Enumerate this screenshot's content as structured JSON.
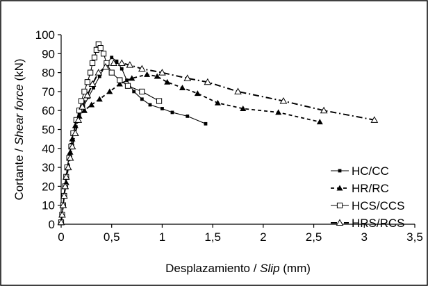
{
  "chart_data": {
    "type": "line",
    "xlabel_parts": [
      {
        "text": "Desplazamiento / ",
        "italic": false
      },
      {
        "text": "Slip",
        "italic": true
      },
      {
        "text": " (mm)",
        "italic": false
      }
    ],
    "ylabel_parts": [
      {
        "text": "Cortante / ",
        "italic": false
      },
      {
        "text": "Shear force",
        "italic": true
      },
      {
        "text": " (kN)",
        "italic": false
      }
    ],
    "xlim": [
      0,
      3.5
    ],
    "ylim": [
      0,
      100
    ],
    "x_ticks": [
      {
        "value": 0,
        "label": "0"
      },
      {
        "value": 0.5,
        "label": "0,5"
      },
      {
        "value": 1,
        "label": "1"
      },
      {
        "value": 1.5,
        "label": "1,5"
      },
      {
        "value": 2,
        "label": "2"
      },
      {
        "value": 2.5,
        "label": "2,5"
      },
      {
        "value": 3,
        "label": "3"
      },
      {
        "value": 3.5,
        "label": "3,5"
      }
    ],
    "y_ticks": [
      {
        "value": 0,
        "label": "0"
      },
      {
        "value": 10,
        "label": "10"
      },
      {
        "value": 20,
        "label": "20"
      },
      {
        "value": 30,
        "label": "30"
      },
      {
        "value": 40,
        "label": "40"
      },
      {
        "value": 50,
        "label": "50"
      },
      {
        "value": 60,
        "label": "60"
      },
      {
        "value": 70,
        "label": "70"
      },
      {
        "value": 80,
        "label": "80"
      },
      {
        "value": 90,
        "label": "90"
      },
      {
        "value": 100,
        "label": "100"
      }
    ],
    "grid": false,
    "legend_position": "right",
    "series": [
      {
        "name": "HC/CC",
        "marker": "filled-square",
        "line": "solid",
        "x": [
          0,
          0.01,
          0.02,
          0.03,
          0.04,
          0.05,
          0.06,
          0.08,
          0.1,
          0.12,
          0.15,
          0.18,
          0.22,
          0.27,
          0.32,
          0.38,
          0.44,
          0.5,
          0.55,
          0.6,
          0.65,
          0.72,
          0.8,
          0.88,
          1.0,
          1.1,
          1.25,
          1.43
        ],
        "y": [
          1,
          5,
          10,
          15,
          20,
          25,
          30,
          36,
          42,
          48,
          54,
          58,
          62,
          67,
          72,
          78,
          84,
          88,
          86,
          82,
          76,
          70,
          66,
          63,
          61,
          59,
          57,
          53
        ]
      },
      {
        "name": "HR/RC",
        "marker": "filled-triangle",
        "line": "dashed",
        "x": [
          0,
          0.01,
          0.02,
          0.03,
          0.05,
          0.07,
          0.09,
          0.11,
          0.14,
          0.18,
          0.23,
          0.3,
          0.38,
          0.48,
          0.58,
          0.7,
          0.85,
          0.95,
          1.05,
          1.2,
          1.35,
          1.55,
          1.8,
          2.15,
          2.56
        ],
        "y": [
          1,
          5,
          10,
          15,
          22,
          30,
          38,
          45,
          52,
          57,
          60,
          63,
          66,
          70,
          74,
          77,
          79,
          78,
          75,
          72,
          69,
          64,
          61,
          59,
          54
        ]
      },
      {
        "name": "HCS/CCS",
        "marker": "open-square",
        "line": "solid",
        "x": [
          0,
          0.01,
          0.02,
          0.03,
          0.04,
          0.05,
          0.06,
          0.08,
          0.1,
          0.12,
          0.15,
          0.18,
          0.2,
          0.23,
          0.26,
          0.29,
          0.31,
          0.33,
          0.35,
          0.37,
          0.39,
          0.42,
          0.45,
          0.5,
          0.58,
          0.66,
          0.8,
          0.97
        ],
        "y": [
          1,
          5,
          10,
          15,
          20,
          25,
          30,
          35,
          41,
          48,
          55,
          60,
          65,
          70,
          75,
          80,
          85,
          88,
          92,
          95,
          93,
          90,
          85,
          80,
          76,
          73,
          70,
          65
        ]
      },
      {
        "name": "HRS/RCS",
        "marker": "open-triangle",
        "line": "dashdot",
        "x": [
          0,
          0.01,
          0.02,
          0.03,
          0.04,
          0.05,
          0.07,
          0.09,
          0.11,
          0.14,
          0.17,
          0.21,
          0.26,
          0.31,
          0.37,
          0.44,
          0.52,
          0.6,
          0.68,
          0.8,
          1.0,
          1.25,
          1.45,
          1.75,
          2.2,
          2.6,
          3.1
        ],
        "y": [
          1,
          5,
          10,
          15,
          20,
          25,
          30,
          35,
          41,
          48,
          55,
          62,
          68,
          74,
          80,
          83,
          85,
          85,
          84,
          82,
          80,
          77,
          75,
          70,
          65,
          60,
          55
        ]
      }
    ]
  }
}
